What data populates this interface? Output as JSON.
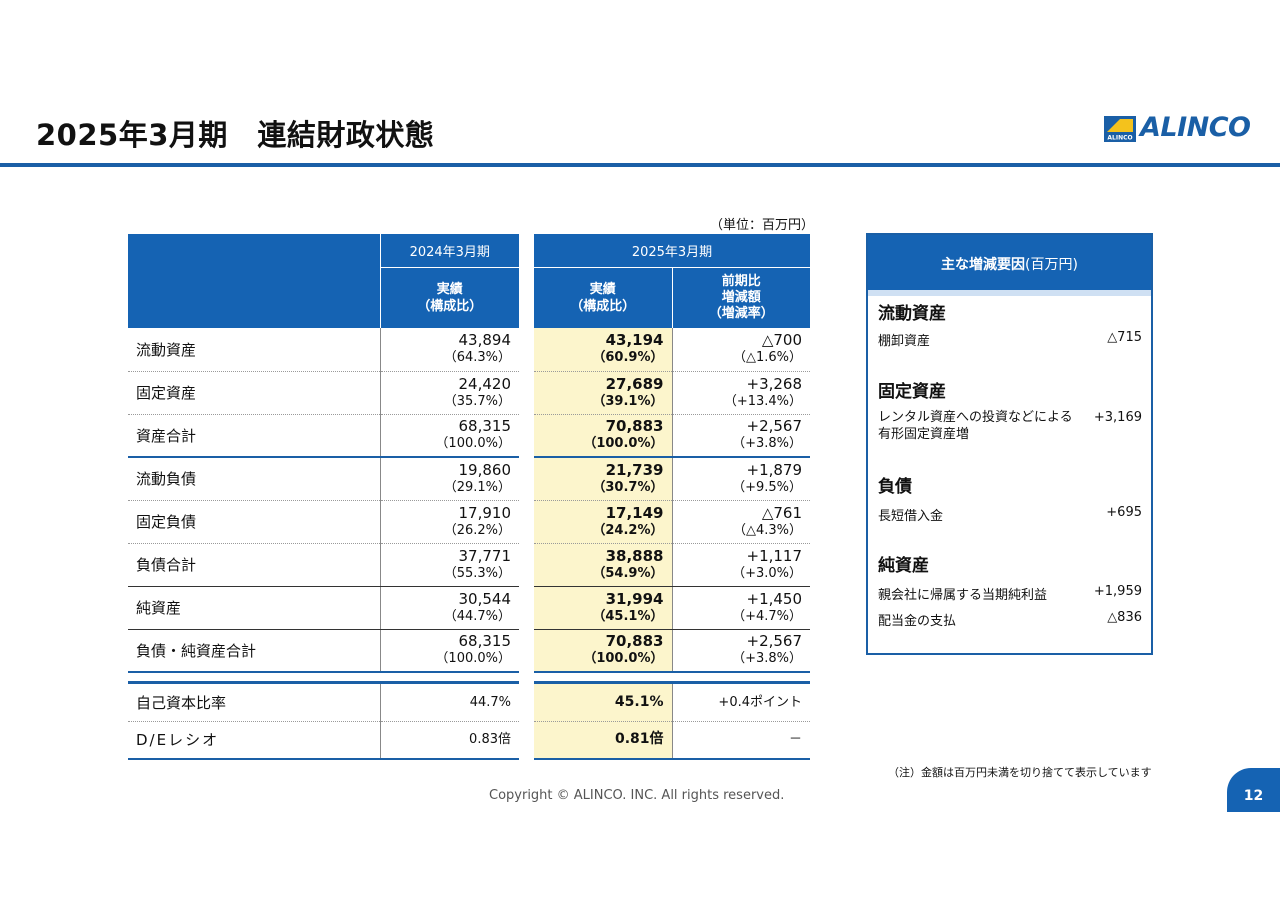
{
  "header": {
    "title": "2025年3月期　連結財政状態",
    "logo_text": "ALINCO",
    "logo_mark_text": "ALINCO"
  },
  "unit_note": "（単位：百万円）",
  "main_table": {
    "col_2024": "2024年3月期",
    "col_2025": "2025年3月期",
    "sub_actual_line1": "実績",
    "sub_actual_line2": "（構成比）",
    "sub_change_line1": "前期比",
    "sub_change_line2": "増減額",
    "sub_change_line3": "（増減率）",
    "rows": [
      {
        "label": "流動資産",
        "v2024": "43,894",
        "p2024": "（64.3%）",
        "v2025": "43,194",
        "p2025": "（60.9%）",
        "diff": "△700",
        "rate": "（△1.6%）"
      },
      {
        "label": "固定資産",
        "v2024": "24,420",
        "p2024": "（35.7%）",
        "v2025": "27,689",
        "p2025": "（39.1%）",
        "diff": "+3,268",
        "rate": "（+13.4%）"
      },
      {
        "label": "資産合計",
        "v2024": "68,315",
        "p2024": "（100.0%）",
        "v2025": "70,883",
        "p2025": "（100.0%）",
        "diff": "+2,567",
        "rate": "（+3.8%）"
      },
      {
        "label": "流動負債",
        "v2024": "19,860",
        "p2024": "（29.1%）",
        "v2025": "21,739",
        "p2025": "（30.7%）",
        "diff": "+1,879",
        "rate": "（+9.5%）"
      },
      {
        "label": "固定負債",
        "v2024": "17,910",
        "p2024": "（26.2%）",
        "v2025": "17,149",
        "p2025": "（24.2%）",
        "diff": "△761",
        "rate": "（△4.3%）"
      },
      {
        "label": "負債合計",
        "v2024": "37,771",
        "p2024": "（55.3%）",
        "v2025": "38,888",
        "p2025": "（54.9%）",
        "diff": "+1,117",
        "rate": "（+3.0%）"
      },
      {
        "label": "純資産",
        "v2024": "30,544",
        "p2024": "（44.7%）",
        "v2025": "31,994",
        "p2025": "（45.1%）",
        "diff": "+1,450",
        "rate": "（+4.7%）"
      },
      {
        "label": "負債・純資産合計",
        "v2024": "68,315",
        "p2024": "（100.0%）",
        "v2025": "70,883",
        "p2025": "（100.0%）",
        "diff": "+2,567",
        "rate": "（+3.8%）"
      }
    ]
  },
  "ratio_table": {
    "rows": [
      {
        "label": "自己資本比率",
        "v2024": "44.7%",
        "v2025": "45.1%",
        "diff": "+0.4ポイント"
      },
      {
        "label": "D/Eレシオ",
        "v2024": "0.83倍",
        "v2025": "0.81倍",
        "diff": "－"
      }
    ]
  },
  "factors": {
    "title_bold": "主な増減要因",
    "title_unit": "(百万円)",
    "sections": [
      {
        "heading": "流動資産",
        "items": [
          {
            "label": "棚卸資産",
            "value": "△715"
          }
        ]
      },
      {
        "heading": "固定資産",
        "items": [
          {
            "label_line1": "レンタル資産への投資などによる",
            "label_line2": "有形固定資産増",
            "value": "+3,169"
          }
        ]
      },
      {
        "heading": "負債",
        "items": [
          {
            "label": "長短借入金",
            "value": "+695"
          }
        ]
      },
      {
        "heading": "純資産",
        "items": [
          {
            "label": "親会社に帰属する当期純利益",
            "value": "+1,959"
          },
          {
            "label": "配当金の支払",
            "value": "△836"
          }
        ]
      }
    ]
  },
  "footnote": "（注）金額は百万円未満を切り捨てて表示しています",
  "copyright": "Copyright © ALINCO. INC. All rights reserved.",
  "page_number": "12",
  "colors": {
    "accent": "#1563b3",
    "highlight": "#fcf5cc"
  }
}
